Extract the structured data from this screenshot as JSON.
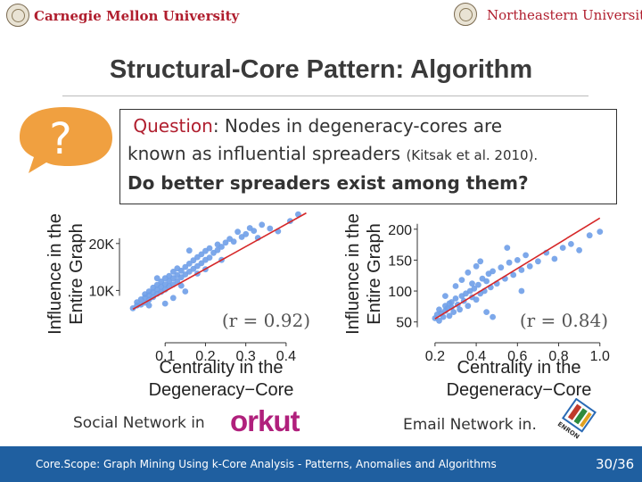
{
  "header": {
    "left_logo_text": "Carnegie Mellon University",
    "right_logo_text": "Northeastern University"
  },
  "slide": {
    "title": "Structural-Core Pattern: Algorithm",
    "question": {
      "label": "Question",
      "line1_rest": ": Nodes in degeneracy-cores are",
      "line2_main": "known as influential spreaders ",
      "line2_cite": "(Kitsak et al. 2010).",
      "line3": "Do better spreaders exist among them?"
    },
    "bubble_symbol": "?",
    "captions": {
      "left_prefix": "Social Network in",
      "left_brand": "orkut",
      "right_prefix": "Email Network in.",
      "right_brand": "ENRON"
    }
  },
  "chart_data": [
    {
      "type": "scatter",
      "title": "",
      "xlabel": "Centrality in the Degeneracy−Core",
      "ylabel": "Influence in the Entire Graph",
      "xlim": [
        0.0,
        0.46
      ],
      "ylim": [
        0,
        27000
      ],
      "xticks": [
        0.1,
        0.2,
        0.3,
        0.4
      ],
      "xtick_labels": [
        "0.1",
        "0.2",
        "0.3",
        "0.4"
      ],
      "yticks": [
        10000,
        20000
      ],
      "ytick_labels": [
        "10K",
        "20K"
      ],
      "annotation": "(r = 0.92)",
      "point_color": "#6f9fe8",
      "fit_color": "#d62728",
      "fit_line": [
        [
          0.02,
          6000
        ],
        [
          0.45,
          26500
        ]
      ],
      "x": [
        0.02,
        0.03,
        0.03,
        0.04,
        0.04,
        0.05,
        0.05,
        0.05,
        0.06,
        0.06,
        0.06,
        0.07,
        0.07,
        0.07,
        0.08,
        0.08,
        0.08,
        0.09,
        0.09,
        0.09,
        0.1,
        0.1,
        0.1,
        0.11,
        0.11,
        0.11,
        0.12,
        0.12,
        0.12,
        0.13,
        0.13,
        0.13,
        0.14,
        0.14,
        0.15,
        0.15,
        0.16,
        0.16,
        0.17,
        0.17,
        0.18,
        0.18,
        0.19,
        0.19,
        0.2,
        0.2,
        0.21,
        0.21,
        0.22,
        0.23,
        0.23,
        0.24,
        0.25,
        0.26,
        0.27,
        0.28,
        0.29,
        0.3,
        0.31,
        0.32,
        0.33,
        0.34,
        0.36,
        0.38,
        0.41,
        0.43,
        0.1,
        0.14,
        0.18,
        0.12,
        0.08,
        0.16,
        0.2,
        0.24,
        0.06,
        0.15
      ],
      "y": [
        6200,
        6800,
        7500,
        7000,
        8100,
        7400,
        8500,
        9200,
        8000,
        9000,
        9800,
        8600,
        9600,
        10600,
        9300,
        10200,
        11200,
        9700,
        10800,
        11900,
        10200,
        11300,
        12600,
        10900,
        12000,
        13100,
        11300,
        12600,
        14000,
        12000,
        13300,
        14700,
        12800,
        14200,
        13400,
        15000,
        14000,
        15700,
        14600,
        16400,
        15200,
        17100,
        15800,
        17700,
        16500,
        18400,
        17000,
        19000,
        18000,
        18600,
        19800,
        19300,
        20200,
        21000,
        20400,
        22500,
        21400,
        22000,
        23300,
        22700,
        21200,
        24000,
        23200,
        22600,
        24800,
        26200,
        7200,
        11000,
        13600,
        8400,
        12600,
        18500,
        14500,
        16500,
        6800,
        9800
      ]
    },
    {
      "type": "scatter",
      "title": "",
      "xlabel": "Centrality in the Degeneracy−Core",
      "ylabel": "Influence in the Entire Graph",
      "xlim": [
        0.14,
        1.04
      ],
      "ylim": [
        25,
        230
      ],
      "xticks": [
        0.2,
        0.4,
        0.6,
        0.8,
        1.0
      ],
      "xtick_labels": [
        "0.2",
        "0.4",
        "0.6",
        "0.8",
        "1.0"
      ],
      "yticks": [
        50,
        100,
        150,
        200
      ],
      "ytick_labels": [
        "50",
        "100",
        "150",
        "200"
      ],
      "annotation": "(r = 0.84)",
      "point_color": "#6f9fe8",
      "fit_color": "#d62728",
      "fit_line": [
        [
          0.2,
          55
        ],
        [
          1.0,
          218
        ]
      ],
      "x": [
        0.2,
        0.21,
        0.22,
        0.22,
        0.23,
        0.24,
        0.25,
        0.25,
        0.26,
        0.27,
        0.28,
        0.28,
        0.29,
        0.3,
        0.31,
        0.32,
        0.33,
        0.34,
        0.35,
        0.36,
        0.37,
        0.38,
        0.39,
        0.4,
        0.41,
        0.42,
        0.43,
        0.44,
        0.45,
        0.46,
        0.47,
        0.48,
        0.5,
        0.52,
        0.54,
        0.56,
        0.58,
        0.6,
        0.62,
        0.64,
        0.66,
        0.7,
        0.74,
        0.78,
        0.82,
        0.86,
        0.9,
        0.95,
        1.0,
        0.3,
        0.36,
        0.42,
        0.48,
        0.25,
        0.33,
        0.4,
        0.55,
        0.62,
        0.27,
        0.45,
        0.38
      ],
      "y": [
        56,
        62,
        52,
        70,
        64,
        58,
        76,
        68,
        72,
        60,
        82,
        74,
        66,
        88,
        78,
        70,
        92,
        84,
        96,
        76,
        100,
        90,
        104,
        86,
        110,
        96,
        120,
        100,
        116,
        128,
        106,
        132,
        112,
        138,
        120,
        146,
        126,
        150,
        134,
        158,
        140,
        148,
        162,
        152,
        170,
        176,
        166,
        190,
        196,
        108,
        130,
        148,
        58,
        92,
        118,
        140,
        170,
        100,
        80,
        66,
        112
      ]
    }
  ],
  "footer": {
    "text": "Core.Scope: Graph Mining Using k-Core Analysis - Patterns, Anomalies and Algorithms",
    "page": "30/36"
  }
}
